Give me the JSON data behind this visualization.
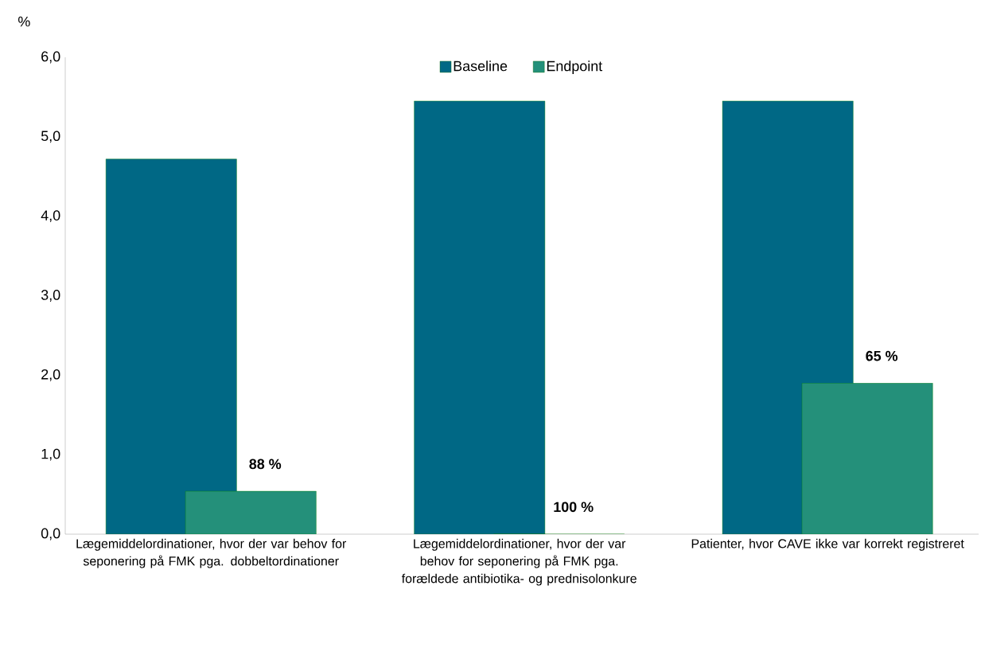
{
  "chart_data": {
    "type": "bar",
    "ylabel": "%",
    "categories": [
      "Lægemiddelordinationer, hvor der var behov for seponering på FMK pga. dobbeltordinationer",
      "Lægemiddelordinationer, hvor der var behov for seponering på FMK pga. forældede antibiotika- og prednisolonkure",
      "Patienter, hvor CAVE ikke var korrekt registreret"
    ],
    "series": [
      {
        "name": "Baseline",
        "color": "#006885",
        "values": [
          4.72,
          5.45,
          5.45
        ]
      },
      {
        "name": "Endpoint",
        "color": "#24907a",
        "values": [
          0.54,
          0,
          1.9
        ]
      }
    ],
    "annotations": [
      "88 %",
      "100 %",
      "65 %"
    ],
    "ylim": [
      0,
      6
    ],
    "yticks": [
      {
        "value": 0,
        "label": "0,0"
      },
      {
        "value": 1,
        "label": "1,0"
      },
      {
        "value": 2,
        "label": "2,0"
      },
      {
        "value": 3,
        "label": "3,0"
      },
      {
        "value": 4,
        "label": "4,0"
      },
      {
        "value": 5,
        "label": "5,0"
      },
      {
        "value": 6,
        "label": "6,0"
      }
    ],
    "grid": false,
    "legend": "top"
  }
}
